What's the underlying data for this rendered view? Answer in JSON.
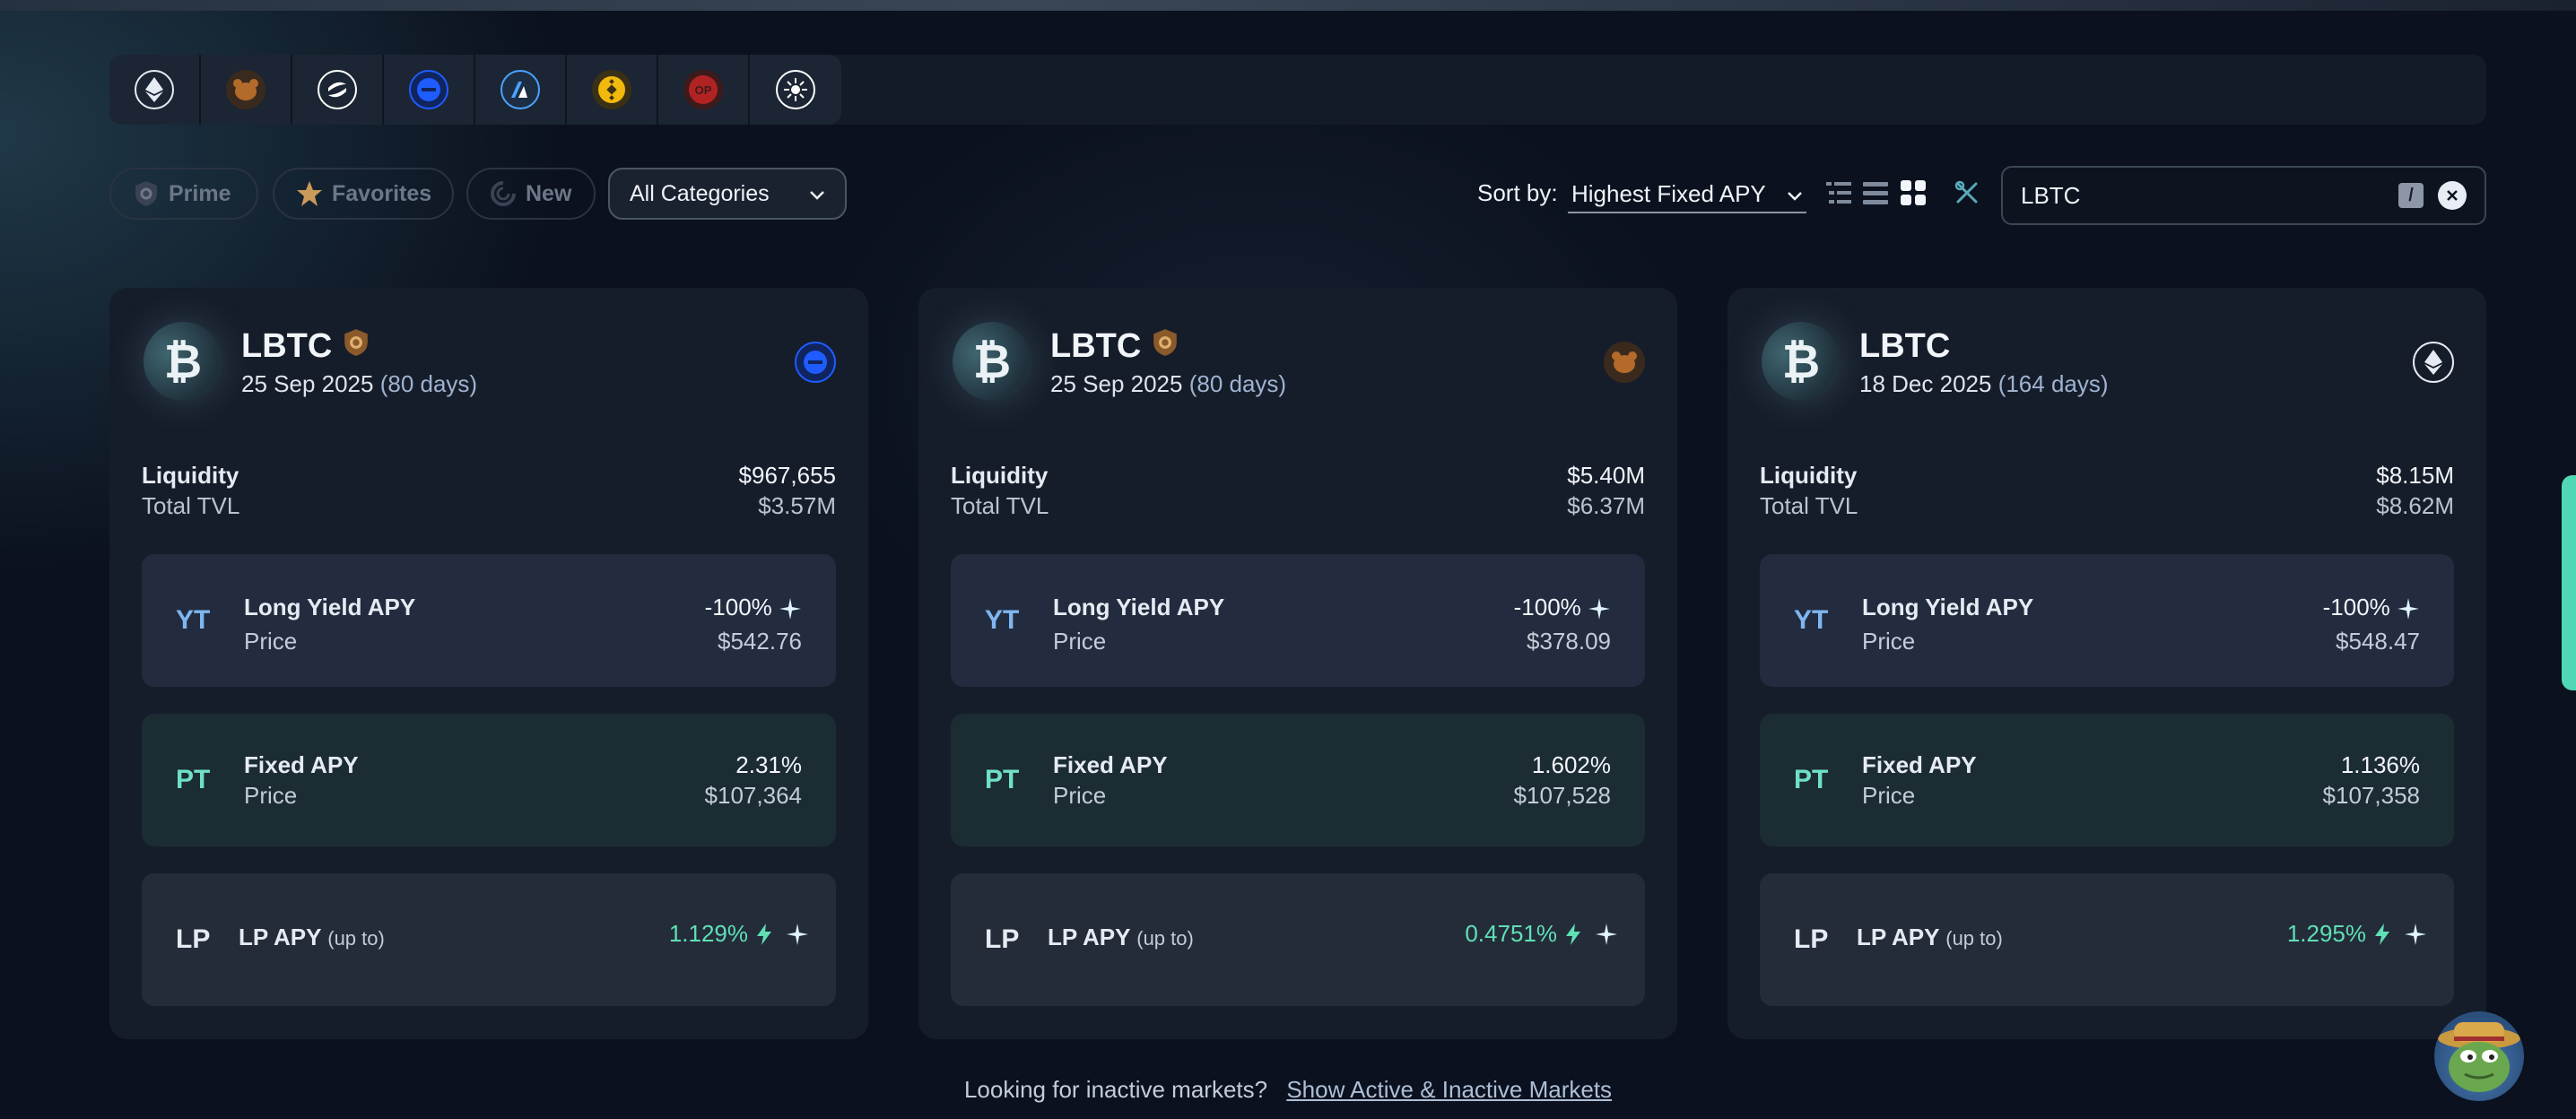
{
  "chains": [
    {
      "name": "ethereum-icon",
      "color": "#e6ebf3",
      "bg": "#2e3645"
    },
    {
      "name": "berachain-icon",
      "color": "#b36a2a",
      "bg": "#3a2a1e"
    },
    {
      "name": "sonic-icon",
      "color": "#ffffff",
      "bg": "#2e3645"
    },
    {
      "name": "base-icon",
      "color": "#1f5cff",
      "bg": "#10245e"
    },
    {
      "name": "arbitrum-icon",
      "color": "#4aa3ff",
      "bg": "#1d2d44"
    },
    {
      "name": "bnb-icon",
      "color": "#f0b90b",
      "bg": "#3a3016"
    },
    {
      "name": "optimism-icon",
      "color": "#ff2a2a",
      "bg": "#3e1a1a"
    },
    {
      "name": "sunburst-icon",
      "color": "#ffffff",
      "bg": "#2e3645"
    }
  ],
  "filters": {
    "prime": "Prime",
    "favorites": "Favorites",
    "new": "New",
    "category": "All Categories"
  },
  "sort": {
    "label": "Sort by:",
    "value": "Highest Fixed APY"
  },
  "search": {
    "value": "LBTC",
    "shortcut": "/"
  },
  "cards": [
    {
      "name": "LBTC",
      "date": "25 Sep 2025",
      "days": "(80 days)",
      "chain": "base-icon",
      "liquidity_label": "Liquidity",
      "liquidity": "$967,655",
      "tvl_label": "Total TVL",
      "tvl": "$3.57M",
      "yt": {
        "tag": "YT",
        "label": "Long Yield APY",
        "sub": "Price",
        "apy": "-100%",
        "price": "$542.76"
      },
      "pt": {
        "tag": "PT",
        "label": "Fixed APY",
        "sub": "Price",
        "apy": "2.31%",
        "price": "$107,364"
      },
      "lp": {
        "tag": "LP",
        "label": "LP APY",
        "sub": "(up to)",
        "apy": "1.129%"
      }
    },
    {
      "name": "LBTC",
      "date": "25 Sep 2025",
      "days": "(80 days)",
      "chain": "berachain-icon",
      "liquidity_label": "Liquidity",
      "liquidity": "$5.40M",
      "tvl_label": "Total TVL",
      "tvl": "$6.37M",
      "yt": {
        "tag": "YT",
        "label": "Long Yield APY",
        "sub": "Price",
        "apy": "-100%",
        "price": "$378.09"
      },
      "pt": {
        "tag": "PT",
        "label": "Fixed APY",
        "sub": "Price",
        "apy": "1.602%",
        "price": "$107,528"
      },
      "lp": {
        "tag": "LP",
        "label": "LP APY",
        "sub": "(up to)",
        "apy": "0.4751%"
      }
    },
    {
      "name": "LBTC",
      "date": "18 Dec 2025",
      "days": "(164 days)",
      "chain": "ethereum-icon",
      "liquidity_label": "Liquidity",
      "liquidity": "$8.15M",
      "tvl_label": "Total TVL",
      "tvl": "$8.62M",
      "yt": {
        "tag": "YT",
        "label": "Long Yield APY",
        "sub": "Price",
        "apy": "-100%",
        "price": "$548.47"
      },
      "pt": {
        "tag": "PT",
        "label": "Fixed APY",
        "sub": "Price",
        "apy": "1.136%",
        "price": "$107,358"
      },
      "lp": {
        "tag": "LP",
        "label": "LP APY",
        "sub": "(up to)",
        "apy": "1.295%"
      }
    }
  ],
  "footer": {
    "text": "Looking for inactive markets?",
    "link": "Show Active & Inactive Markets"
  }
}
